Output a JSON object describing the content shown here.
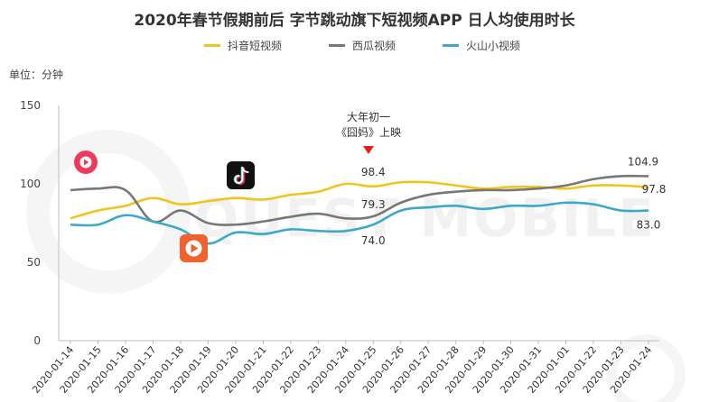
{
  "title": "2020年春节假期前后 字节跳动旗下短视频APP 日人均使用时长",
  "unit_label": "单位：分钟",
  "colors": {
    "douyin": "#f0c419",
    "xigua": "#777777",
    "huoshan": "#3ba8cc"
  },
  "annotation": {
    "line1": "大年初一",
    "line2": "《囧妈》上映",
    "marker_x": "2020-01-25"
  },
  "watermark": "QUEST MOBILE",
  "icons": [
    "xigua-icon",
    "douyin-icon",
    "huoshan-icon"
  ],
  "chart_data": {
    "type": "line",
    "title": "2020年春节假期前后 字节跳动旗下短视频APP 日人均使用时长",
    "ylabel": "单位：分钟",
    "xlabel": "",
    "ylim": [
      0,
      150
    ],
    "yticks": [
      0,
      50,
      100,
      150
    ],
    "grid": false,
    "legend_position": "top",
    "x": [
      "2020-01-14",
      "2020-01-15",
      "2020-01-16",
      "2020-01-17",
      "2020-01-18",
      "2020-01-19",
      "2020-01-20",
      "2020-01-21",
      "2020-01-22",
      "2020-01-23",
      "2020-01-24",
      "2020-01-25",
      "2020-01-26",
      "2020-01-27",
      "2020-01-28",
      "2020-01-29",
      "2020-01-30",
      "2020-01-31",
      "2020-01-01",
      "2020-01-22",
      "2020-01-23",
      "2020-01-24"
    ],
    "series": [
      {
        "name": "抖音短视频",
        "color": "#f0c419",
        "values": [
          78,
          83,
          86,
          91,
          87,
          89,
          91,
          90,
          93,
          95,
          100,
          98.4,
          101,
          101,
          99,
          97,
          98,
          98,
          97,
          99,
          99,
          97.8
        ]
      },
      {
        "name": "西瓜视频",
        "color": "#777777",
        "values": [
          96,
          97,
          96,
          76,
          83,
          75,
          74,
          76,
          79,
          81,
          78,
          79.3,
          88,
          93,
          95,
          96,
          96,
          97,
          99,
          103,
          104.9,
          104.9
        ]
      },
      {
        "name": "火山小视频",
        "color": "#3ba8cc",
        "values": [
          74,
          74,
          80,
          76,
          71,
          62,
          69,
          68,
          71,
          70,
          70,
          74.0,
          83,
          85,
          86,
          84,
          86,
          86,
          88,
          87,
          83,
          83.0
        ]
      }
    ],
    "data_labels": [
      {
        "series": "抖音短视频",
        "x": "2020-01-25",
        "value": "98.4"
      },
      {
        "series": "西瓜视频",
        "x": "2020-01-25",
        "value": "79.3"
      },
      {
        "series": "火山小视频",
        "x": "2020-01-25",
        "value": "74.0"
      },
      {
        "series": "西瓜视频",
        "x": "2020-01-24",
        "value": "104.9"
      },
      {
        "series": "抖音短视频",
        "x": "2020-01-24",
        "value": "97.8"
      },
      {
        "series": "火山小视频",
        "x": "2020-01-24",
        "value": "83.0"
      }
    ]
  }
}
